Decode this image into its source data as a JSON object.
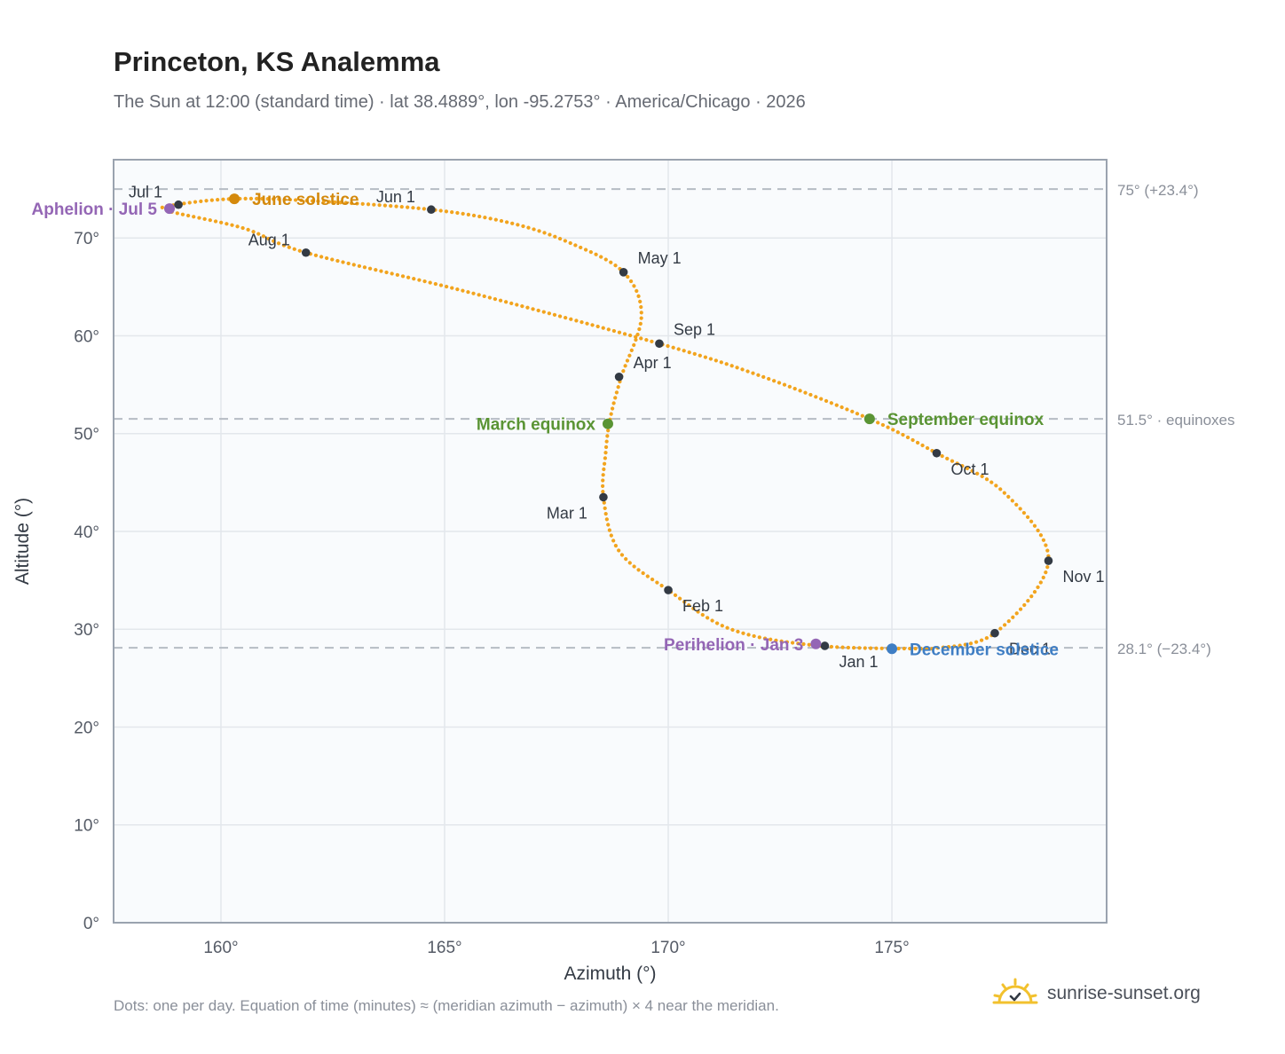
{
  "header": {
    "title": "Princeton, KS Analemma",
    "subtitle": "The Sun at 12:00 (standard time) · lat 38.4889°, lon -95.2753° · America/Chicago · 2026"
  },
  "footer": {
    "note": "Dots: one per day. Equation of time (minutes) ≈ (meridian azimuth − azimuth) × 4 near the meridian.",
    "brand": "sunrise-sunset.org",
    "brand_icon": "sun-logo-icon"
  },
  "colors": {
    "path": "#f2a41e",
    "month_dot": "#333a44",
    "equinox": "#5a9434",
    "june_solstice": "#d4890c",
    "december_solstice": "#3f7ec4",
    "apsis": "#9466b5",
    "plot_bg": "#f9fbfd",
    "grid": "#e3e7ec",
    "frame": "#9aa3af",
    "ref_line": "#b6bcc4"
  },
  "chart_data": {
    "type": "scatter",
    "title": "Princeton, KS Analemma",
    "xlabel": "Azimuth (°)",
    "ylabel": "Altitude (°)",
    "xlim": [
      157.6,
      179.8
    ],
    "ylim": [
      0,
      78
    ],
    "x_ticks": [
      160,
      165,
      170,
      175
    ],
    "y_ticks": [
      0,
      10,
      20,
      30,
      40,
      50,
      60,
      70
    ],
    "x_tick_format": "{v}°",
    "y_tick_format": "{v}°",
    "grid": true,
    "path_points": [
      [
        175.9,
        28.0
      ],
      [
        173.4,
        28.3
      ],
      [
        171.4,
        30.0
      ],
      [
        170.0,
        34.0
      ],
      [
        168.9,
        38.0
      ],
      [
        168.55,
        43.5
      ],
      [
        168.6,
        48.0
      ],
      [
        168.7,
        51.5
      ],
      [
        168.95,
        55.8
      ],
      [
        169.4,
        62.0
      ],
      [
        169.0,
        66.5
      ],
      [
        167.8,
        69.5
      ],
      [
        166.5,
        71.5
      ],
      [
        164.7,
        72.9
      ],
      [
        162.0,
        73.8
      ],
      [
        160.3,
        74.0
      ],
      [
        159.0,
        73.4
      ],
      [
        158.8,
        72.8
      ],
      [
        160.5,
        71.0
      ],
      [
        161.9,
        68.5
      ],
      [
        165.5,
        64.5
      ],
      [
        169.8,
        59.2
      ],
      [
        172.0,
        56.0
      ],
      [
        174.5,
        51.5
      ],
      [
        176.0,
        48.0
      ],
      [
        177.5,
        44.0
      ],
      [
        178.5,
        37.0
      ],
      [
        177.3,
        29.6
      ],
      [
        175.9,
        28.0
      ]
    ],
    "reference_lines": [
      {
        "y": 75,
        "label": "75° (+23.4°)"
      },
      {
        "y": 51.5,
        "label": "51.5° · equinoxes"
      },
      {
        "y": 28.1,
        "label": "28.1° (−23.4°)"
      }
    ],
    "month_points": [
      {
        "label": "Jan 1",
        "x": 173.5,
        "y": 28.3,
        "pos": "below-right"
      },
      {
        "label": "Feb 1",
        "x": 170.0,
        "y": 34.0,
        "pos": "below-right"
      },
      {
        "label": "Mar 1",
        "x": 168.55,
        "y": 43.5,
        "pos": "below-left"
      },
      {
        "label": "Apr 1",
        "x": 168.9,
        "y": 55.8,
        "pos": "above-right"
      },
      {
        "label": "May 1",
        "x": 169.0,
        "y": 66.5,
        "pos": "above-right"
      },
      {
        "label": "Jun 1",
        "x": 164.7,
        "y": 72.9,
        "pos": "above-left"
      },
      {
        "label": "Jul 1",
        "x": 159.05,
        "y": 73.4,
        "pos": "above-left"
      },
      {
        "label": "Aug 1",
        "x": 161.9,
        "y": 68.5,
        "pos": "above-left"
      },
      {
        "label": "Sep 1",
        "x": 169.8,
        "y": 59.2,
        "pos": "above-right"
      },
      {
        "label": "Oct 1",
        "x": 176.0,
        "y": 48.0,
        "pos": "below-right"
      },
      {
        "label": "Nov 1",
        "x": 178.5,
        "y": 37.0,
        "pos": "below-right"
      },
      {
        "label": "Dec 1",
        "x": 177.3,
        "y": 29.6,
        "pos": "below-right"
      }
    ],
    "events": [
      {
        "label": "March equinox",
        "x": 168.65,
        "y": 51.0,
        "color": "equinox",
        "anchor": "left"
      },
      {
        "label": "June solstice",
        "x": 160.3,
        "y": 74.0,
        "color": "june_solstice",
        "anchor": "right"
      },
      {
        "label": "September equinox",
        "x": 174.5,
        "y": 51.5,
        "color": "equinox",
        "anchor": "right"
      },
      {
        "label": "December solstice",
        "x": 175.0,
        "y": 28.0,
        "color": "december_solstice",
        "anchor": "right"
      },
      {
        "label": "Perihelion · Jan 3",
        "x": 173.3,
        "y": 28.5,
        "color": "apsis",
        "anchor": "left"
      },
      {
        "label": "Aphelion · Jul 5",
        "x": 158.85,
        "y": 73.0,
        "color": "apsis",
        "anchor": "left"
      }
    ]
  }
}
